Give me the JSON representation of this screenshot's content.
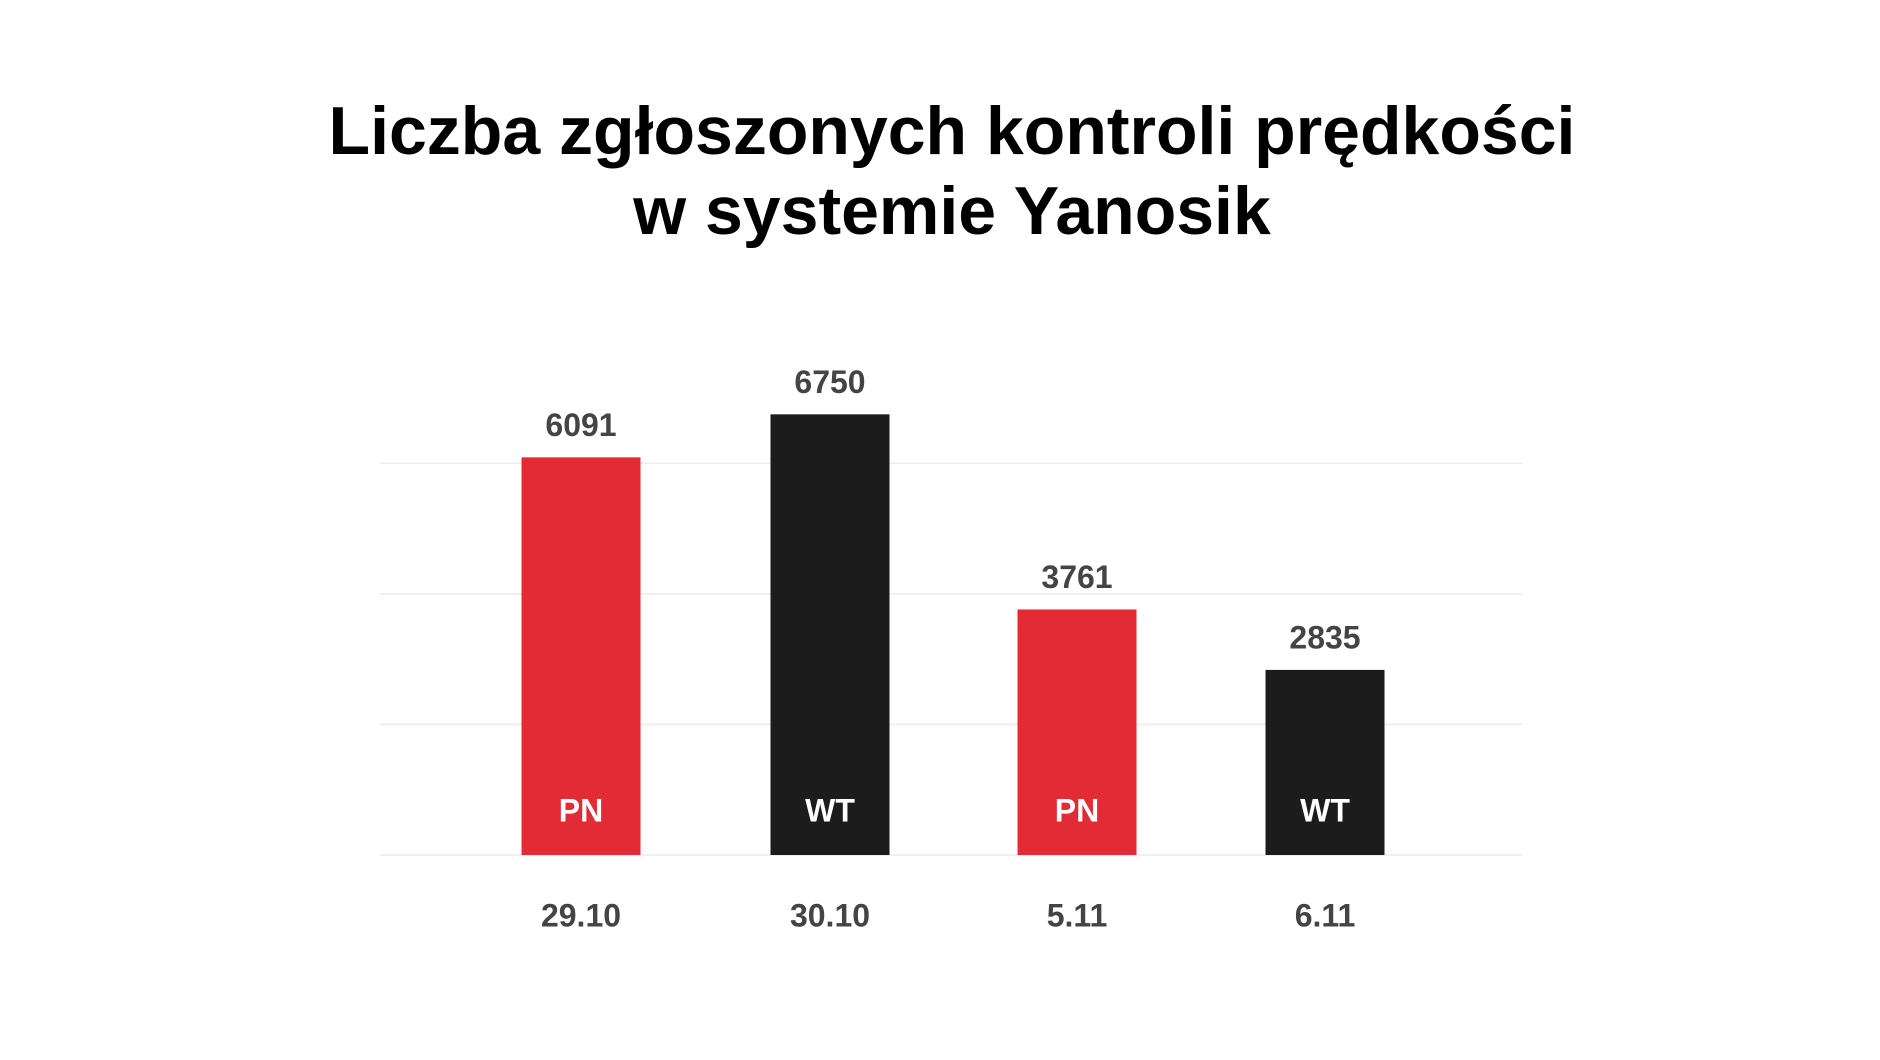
{
  "chart_data": {
    "type": "bar",
    "title": [
      "Liczba zgłoszonych kontroli prędkości",
      "w systemie Yanosik"
    ],
    "categories": [
      "29.10",
      "30.10",
      "5.11",
      "6.11"
    ],
    "day_labels": [
      "PN",
      "WT",
      "PN",
      "WT"
    ],
    "values": [
      6091,
      6750,
      3761,
      2835
    ],
    "colors": [
      "#e32b35",
      "#1c1c1c",
      "#e32b35",
      "#1c1c1c"
    ],
    "ylim": [
      0,
      7000
    ],
    "yticks": [
      0,
      2000,
      4000,
      6000
    ],
    "grid": true
  }
}
